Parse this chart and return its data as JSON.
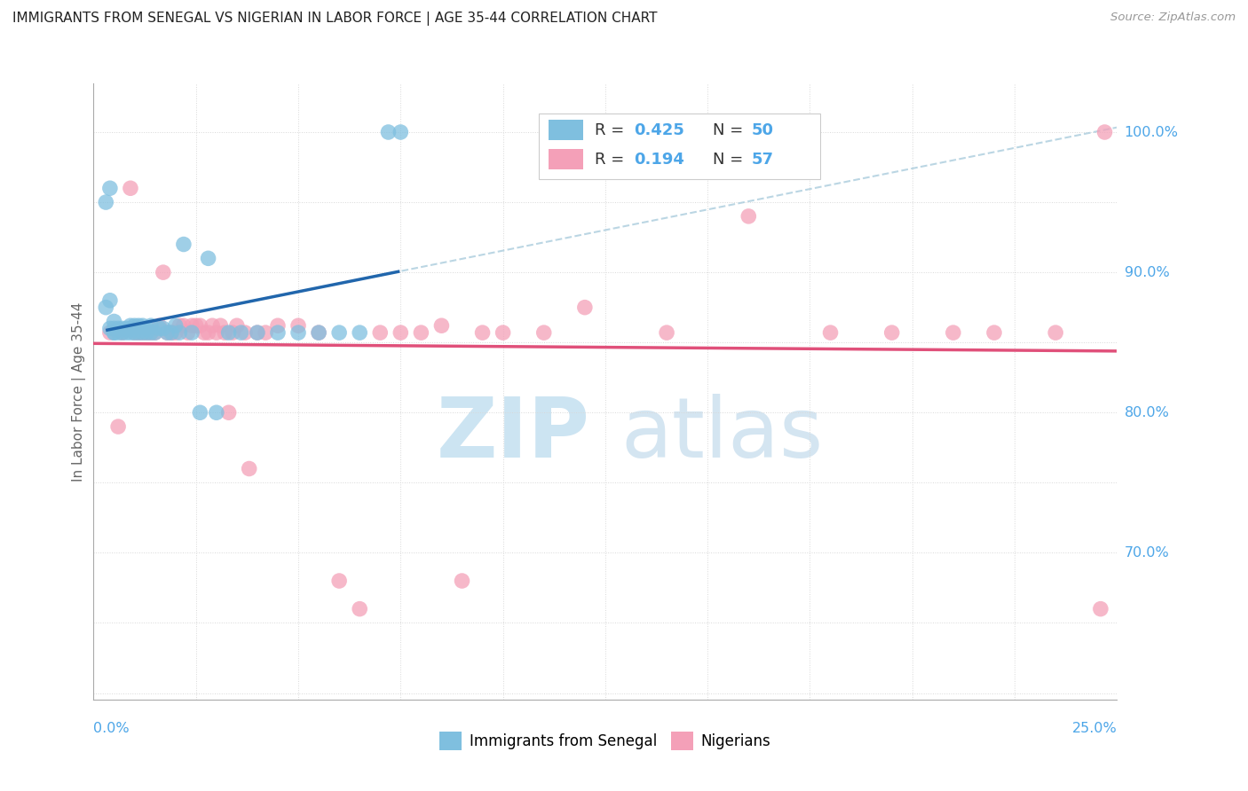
{
  "title": "IMMIGRANTS FROM SENEGAL VS NIGERIAN IN LABOR FORCE | AGE 35-44 CORRELATION CHART",
  "source": "Source: ZipAtlas.com",
  "ylabel": "In Labor Force | Age 35-44",
  "xmin": 0.0,
  "xmax": 0.25,
  "ymin": 0.595,
  "ymax": 1.035,
  "blue_color": "#7fbfdf",
  "pink_color": "#f4a0b8",
  "blue_line_color": "#2166ac",
  "pink_line_color": "#e0507a",
  "accent_color": "#4da6e8",
  "grid_color": "#d8d8d8",
  "right_labels": {
    "0.70": "70.0%",
    "0.80": "80.0%",
    "0.90": "90.0%",
    "1.00": "100.0%"
  },
  "blue_scatter_x": [
    0.003,
    0.004,
    0.004,
    0.005,
    0.005,
    0.005,
    0.005,
    0.006,
    0.006,
    0.007,
    0.007,
    0.008,
    0.008,
    0.009,
    0.009,
    0.009,
    0.01,
    0.01,
    0.011,
    0.011,
    0.012,
    0.012,
    0.013,
    0.013,
    0.014,
    0.014,
    0.015,
    0.016,
    0.017,
    0.018,
    0.019,
    0.02,
    0.021,
    0.022,
    0.024,
    0.026,
    0.028,
    0.03,
    0.033,
    0.036,
    0.04,
    0.045,
    0.05,
    0.055,
    0.06,
    0.065,
    0.003,
    0.004,
    0.072,
    0.075
  ],
  "blue_scatter_y": [
    0.875,
    0.88,
    0.86,
    0.865,
    0.857,
    0.857,
    0.86,
    0.857,
    0.86,
    0.857,
    0.86,
    0.857,
    0.86,
    0.857,
    0.86,
    0.862,
    0.857,
    0.862,
    0.857,
    0.862,
    0.857,
    0.862,
    0.857,
    0.86,
    0.857,
    0.862,
    0.857,
    0.86,
    0.86,
    0.857,
    0.857,
    0.862,
    0.857,
    0.92,
    0.857,
    0.8,
    0.91,
    0.8,
    0.857,
    0.857,
    0.857,
    0.857,
    0.857,
    0.857,
    0.857,
    0.857,
    0.95,
    0.96,
    1.0,
    1.0
  ],
  "pink_scatter_x": [
    0.004,
    0.006,
    0.007,
    0.009,
    0.01,
    0.011,
    0.012,
    0.013,
    0.014,
    0.015,
    0.016,
    0.017,
    0.018,
    0.019,
    0.02,
    0.021,
    0.022,
    0.023,
    0.024,
    0.025,
    0.026,
    0.027,
    0.028,
    0.029,
    0.03,
    0.031,
    0.032,
    0.033,
    0.034,
    0.035,
    0.037,
    0.038,
    0.04,
    0.042,
    0.045,
    0.05,
    0.055,
    0.06,
    0.065,
    0.07,
    0.075,
    0.08,
    0.085,
    0.09,
    0.095,
    0.1,
    0.11,
    0.12,
    0.14,
    0.16,
    0.18,
    0.195,
    0.21,
    0.22,
    0.235,
    0.246,
    0.247
  ],
  "pink_scatter_y": [
    0.857,
    0.79,
    0.857,
    0.96,
    0.857,
    0.857,
    0.857,
    0.857,
    0.857,
    0.857,
    0.862,
    0.9,
    0.857,
    0.857,
    0.857,
    0.862,
    0.862,
    0.857,
    0.862,
    0.862,
    0.862,
    0.857,
    0.857,
    0.862,
    0.857,
    0.862,
    0.857,
    0.8,
    0.857,
    0.862,
    0.857,
    0.76,
    0.857,
    0.857,
    0.862,
    0.862,
    0.857,
    0.68,
    0.66,
    0.857,
    0.857,
    0.857,
    0.862,
    0.68,
    0.857,
    0.857,
    0.857,
    0.875,
    0.857,
    0.94,
    0.857,
    0.857,
    0.857,
    0.857,
    0.857,
    0.66,
    1.0
  ]
}
